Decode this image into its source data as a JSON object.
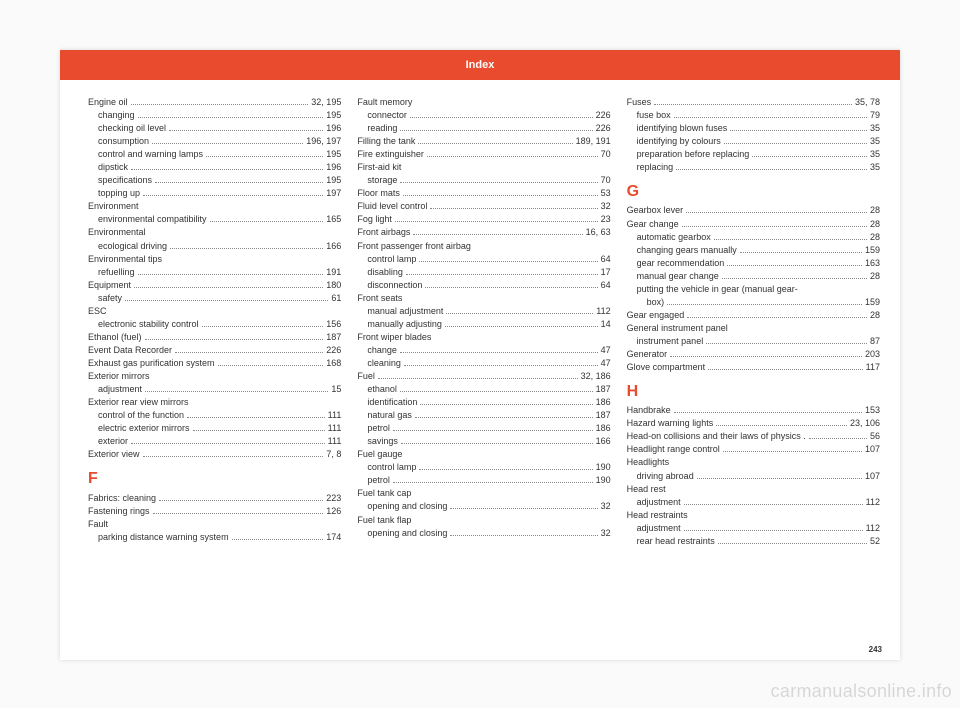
{
  "colors": {
    "header_bg": "#e94b2f",
    "header_text": "#ffffff",
    "section_letter": "#e94b2f",
    "background": "#ffffff",
    "body_bg": "#fafafa"
  },
  "header_title": "Index",
  "page_number": "243",
  "watermark": "carmanualsonline.info",
  "columns": [
    [
      {
        "type": "entry",
        "label": "Engine oil",
        "page": "32, 195"
      },
      {
        "type": "sub",
        "label": "changing",
        "page": "195"
      },
      {
        "type": "sub",
        "label": "checking oil level",
        "page": "196"
      },
      {
        "type": "sub",
        "label": "consumption",
        "page": "196, 197"
      },
      {
        "type": "sub",
        "label": "control and warning lamps",
        "page": "195"
      },
      {
        "type": "sub",
        "label": "dipstick",
        "page": "196"
      },
      {
        "type": "sub",
        "label": "specifications",
        "page": "195"
      },
      {
        "type": "sub",
        "label": "topping up",
        "page": "197"
      },
      {
        "type": "entry",
        "label": "Environment",
        "page": ""
      },
      {
        "type": "sub",
        "label": "environmental compatibility",
        "page": "165"
      },
      {
        "type": "entry",
        "label": "Environmental",
        "page": ""
      },
      {
        "type": "sub",
        "label": "ecological driving",
        "page": "166"
      },
      {
        "type": "entry",
        "label": "Environmental tips",
        "page": ""
      },
      {
        "type": "sub",
        "label": "refuelling",
        "page": "191"
      },
      {
        "type": "entry",
        "label": "Equipment",
        "page": "180"
      },
      {
        "type": "sub",
        "label": "safety",
        "page": "61"
      },
      {
        "type": "entry",
        "label": "ESC",
        "page": ""
      },
      {
        "type": "sub",
        "label": "electronic stability control",
        "page": "156"
      },
      {
        "type": "entry",
        "label": "Ethanol (fuel)",
        "page": "187"
      },
      {
        "type": "entry",
        "label": "Event Data Recorder",
        "page": "226"
      },
      {
        "type": "entry",
        "label": "Exhaust gas purification system",
        "page": "168"
      },
      {
        "type": "entry",
        "label": "Exterior mirrors",
        "page": ""
      },
      {
        "type": "sub",
        "label": "adjustment",
        "page": "15"
      },
      {
        "type": "entry",
        "label": "Exterior rear view mirrors",
        "page": ""
      },
      {
        "type": "sub",
        "label": "control of the function",
        "page": "111"
      },
      {
        "type": "sub",
        "label": "electric exterior mirrors",
        "page": "111"
      },
      {
        "type": "sub",
        "label": "exterior",
        "page": "111"
      },
      {
        "type": "entry",
        "label": "Exterior view",
        "page": "7, 8"
      },
      {
        "type": "letter",
        "label": "F"
      },
      {
        "type": "entry",
        "label": "Fabrics: cleaning",
        "page": "223"
      },
      {
        "type": "entry",
        "label": "Fastening rings",
        "page": "126"
      },
      {
        "type": "entry",
        "label": "Fault",
        "page": ""
      },
      {
        "type": "sub",
        "label": "parking distance warning system",
        "page": "174"
      }
    ],
    [
      {
        "type": "entry",
        "label": "Fault memory",
        "page": ""
      },
      {
        "type": "sub",
        "label": "connector",
        "page": "226"
      },
      {
        "type": "sub",
        "label": "reading",
        "page": "226"
      },
      {
        "type": "entry",
        "label": "Filling the tank",
        "page": "189, 191"
      },
      {
        "type": "entry",
        "label": "Fire extinguisher",
        "page": "70"
      },
      {
        "type": "entry",
        "label": "First-aid kit",
        "page": ""
      },
      {
        "type": "sub",
        "label": "storage",
        "page": "70"
      },
      {
        "type": "entry",
        "label": "Floor mats",
        "page": "53"
      },
      {
        "type": "entry",
        "label": "Fluid level control",
        "page": "32"
      },
      {
        "type": "entry",
        "label": "Fog light",
        "page": "23"
      },
      {
        "type": "entry",
        "label": "Front airbags",
        "page": "16, 63"
      },
      {
        "type": "entry",
        "label": "Front passenger front airbag",
        "page": ""
      },
      {
        "type": "sub",
        "label": "control lamp",
        "page": "64"
      },
      {
        "type": "sub",
        "label": "disabling",
        "page": "17"
      },
      {
        "type": "sub",
        "label": "disconnection",
        "page": "64"
      },
      {
        "type": "entry",
        "label": "Front seats",
        "page": ""
      },
      {
        "type": "sub",
        "label": "manual adjustment",
        "page": "112"
      },
      {
        "type": "sub",
        "label": "manually adjusting",
        "page": "14"
      },
      {
        "type": "entry",
        "label": "Front wiper blades",
        "page": ""
      },
      {
        "type": "sub",
        "label": "change",
        "page": "47"
      },
      {
        "type": "sub",
        "label": "cleaning",
        "page": "47"
      },
      {
        "type": "entry",
        "label": "Fuel",
        "page": "32, 186"
      },
      {
        "type": "sub",
        "label": "ethanol",
        "page": "187"
      },
      {
        "type": "sub",
        "label": "identification",
        "page": "186"
      },
      {
        "type": "sub",
        "label": "natural gas",
        "page": "187"
      },
      {
        "type": "sub",
        "label": "petrol",
        "page": "186"
      },
      {
        "type": "sub",
        "label": "savings",
        "page": "166"
      },
      {
        "type": "entry",
        "label": "Fuel gauge",
        "page": ""
      },
      {
        "type": "sub",
        "label": "control lamp",
        "page": "190"
      },
      {
        "type": "sub",
        "label": "petrol",
        "page": "190"
      },
      {
        "type": "entry",
        "label": "Fuel tank cap",
        "page": ""
      },
      {
        "type": "sub",
        "label": "opening and closing",
        "page": "32"
      },
      {
        "type": "entry",
        "label": "Fuel tank flap",
        "page": ""
      },
      {
        "type": "sub",
        "label": "opening and closing",
        "page": "32"
      }
    ],
    [
      {
        "type": "entry",
        "label": "Fuses",
        "page": "35, 78"
      },
      {
        "type": "sub",
        "label": "fuse box",
        "page": "79"
      },
      {
        "type": "sub",
        "label": "identifying blown fuses",
        "page": "35"
      },
      {
        "type": "sub",
        "label": "identifying by colours",
        "page": "35"
      },
      {
        "type": "sub",
        "label": "preparation before replacing",
        "page": "35"
      },
      {
        "type": "sub",
        "label": "replacing",
        "page": "35"
      },
      {
        "type": "letter",
        "label": "G"
      },
      {
        "type": "entry",
        "label": "Gearbox lever",
        "page": "28"
      },
      {
        "type": "entry",
        "label": "Gear change",
        "page": "28"
      },
      {
        "type": "sub",
        "label": "automatic gearbox",
        "page": "28"
      },
      {
        "type": "sub",
        "label": "changing gears manually",
        "page": "159"
      },
      {
        "type": "sub",
        "label": "gear recommendation",
        "page": "163"
      },
      {
        "type": "sub",
        "label": "manual gear change",
        "page": "28"
      },
      {
        "type": "sub",
        "label": "putting the vehicle in gear (manual gear-",
        "page": ""
      },
      {
        "type": "sub2",
        "label": "box)",
        "page": "159"
      },
      {
        "type": "entry",
        "label": "Gear engaged",
        "page": "28"
      },
      {
        "type": "entry",
        "label": "General instrument panel",
        "page": ""
      },
      {
        "type": "sub",
        "label": "instrument panel",
        "page": "87"
      },
      {
        "type": "entry",
        "label": "Generator",
        "page": "203"
      },
      {
        "type": "entry",
        "label": "Glove compartment",
        "page": "117"
      },
      {
        "type": "letter",
        "label": "H"
      },
      {
        "type": "entry",
        "label": "Handbrake",
        "page": "153"
      },
      {
        "type": "entry",
        "label": "Hazard warning lights",
        "page": "23, 106"
      },
      {
        "type": "entry",
        "label": "Head-on collisions and their laws of physics .",
        "page": "56"
      },
      {
        "type": "entry",
        "label": "Headlight range control",
        "page": "107"
      },
      {
        "type": "entry",
        "label": "Headlights",
        "page": ""
      },
      {
        "type": "sub",
        "label": "driving abroad",
        "page": "107"
      },
      {
        "type": "entry",
        "label": "Head rest",
        "page": ""
      },
      {
        "type": "sub",
        "label": "adjustment",
        "page": "112"
      },
      {
        "type": "entry",
        "label": "Head restraints",
        "page": ""
      },
      {
        "type": "sub",
        "label": "adjustment",
        "page": "112"
      },
      {
        "type": "sub",
        "label": "rear head restraints",
        "page": "52"
      }
    ]
  ]
}
